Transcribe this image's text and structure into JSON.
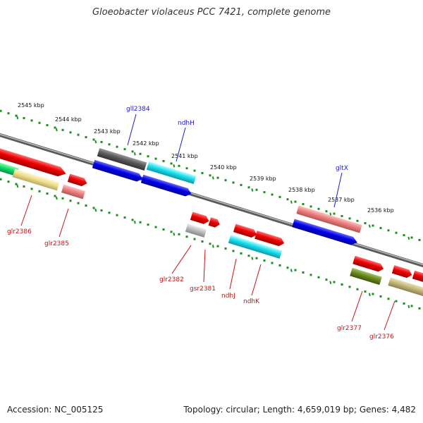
{
  "title": "Gloeobacter violaceus PCC 7421, complete genome",
  "footer": {
    "accession": "Accession: NC_005125",
    "summary": "Topology: circular; Length: 4,659,019 bp; Genes: 4,482"
  },
  "colors": {
    "backbone": "#7f7f7f",
    "tick": "#1d8f1d",
    "label_forward": "#1a1acc",
    "label_reverse": "#cc1111"
  },
  "kbp_labels": [
    "2545 kbp",
    "2544 kbp",
    "2543 kbp",
    "2542 kbp",
    "2541 kbp",
    "2540 kbp",
    "2539 kbp",
    "2538 kbp",
    "2537 kbp",
    "2536 kbp"
  ],
  "genes": {
    "gll2384": "gll2384",
    "ndhH": "ndhH",
    "gltX": "gltX",
    "glr2386": "glr2386",
    "glr2385": "glr2385",
    "glr2382": "glr2382",
    "gsr2381": "gsr2381",
    "ndhJ": "ndhJ",
    "ndhK": "ndhK",
    "glr2377": "glr2377",
    "glr2376": "glr2376"
  }
}
